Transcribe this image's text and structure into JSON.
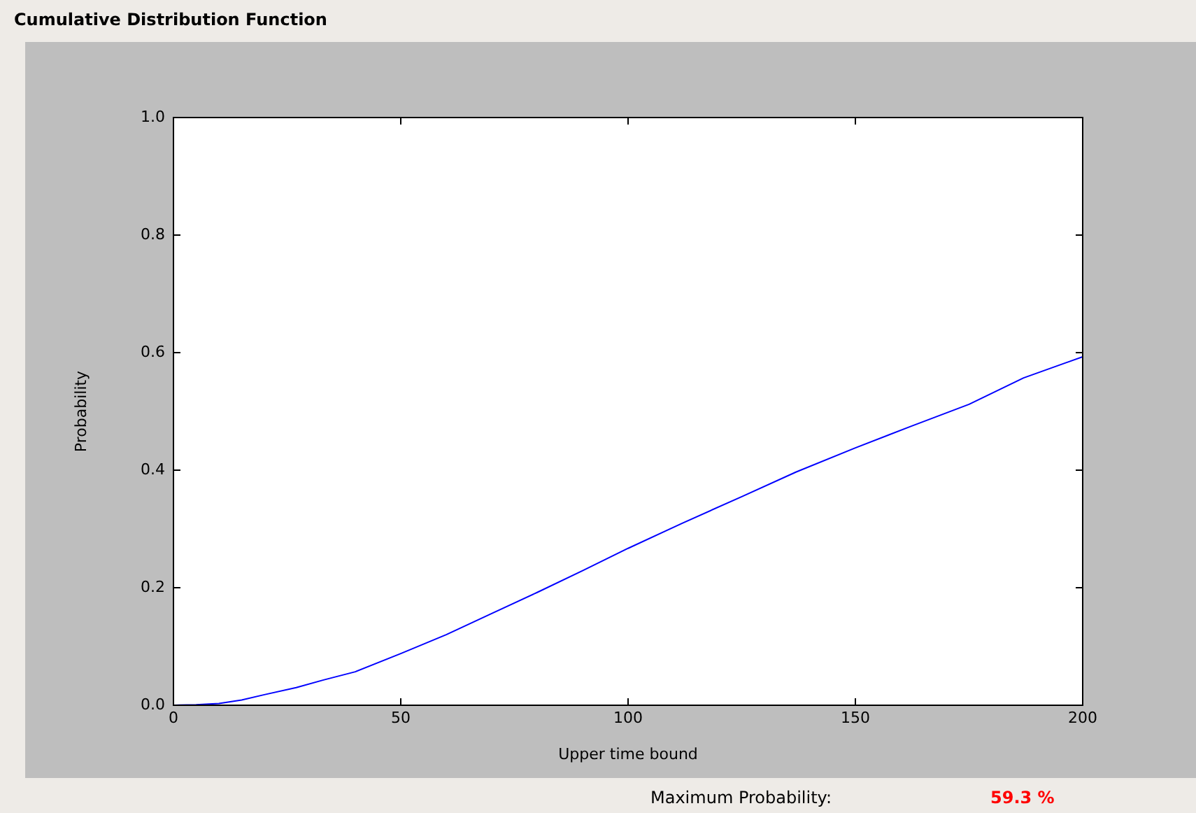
{
  "chart_data": {
    "type": "line",
    "title": "Cumulative Distribution Function",
    "xlabel": "Upper time bound",
    "ylabel": "Probability",
    "x": [
      0,
      5,
      10,
      15,
      20,
      27,
      33,
      40,
      50,
      60,
      70,
      80,
      90,
      100,
      112,
      125,
      137,
      150,
      162,
      175,
      187,
      200
    ],
    "series": [
      {
        "color": "#0000ff",
        "values": [
          0,
          0.001,
          0.003,
          0.009,
          0.018,
          0.03,
          0.043,
          0.057,
          0.088,
          0.12,
          0.156,
          0.192,
          0.229,
          0.267,
          0.31,
          0.355,
          0.397,
          0.438,
          0.474,
          0.512,
          0.557,
          0.593
        ]
      }
    ],
    "xlim": [
      0,
      200
    ],
    "xticks": [
      0,
      50,
      100,
      150,
      200
    ],
    "ylim": [
      0,
      1
    ],
    "yticks": [
      {
        "value": 0,
        "label": "0.0"
      },
      {
        "value": 0.2,
        "label": "0.2"
      },
      {
        "value": 0.4,
        "label": "0.4"
      },
      {
        "value": 0.6,
        "label": "0.6"
      },
      {
        "value": 0.8,
        "label": "0.8"
      },
      {
        "value": 1,
        "label": "1.0"
      }
    ],
    "grid": false,
    "legend": false,
    "marker": "none",
    "line_style": "solid",
    "annotations": [
      "Maximum Probability:",
      "59.3 %"
    ]
  }
}
